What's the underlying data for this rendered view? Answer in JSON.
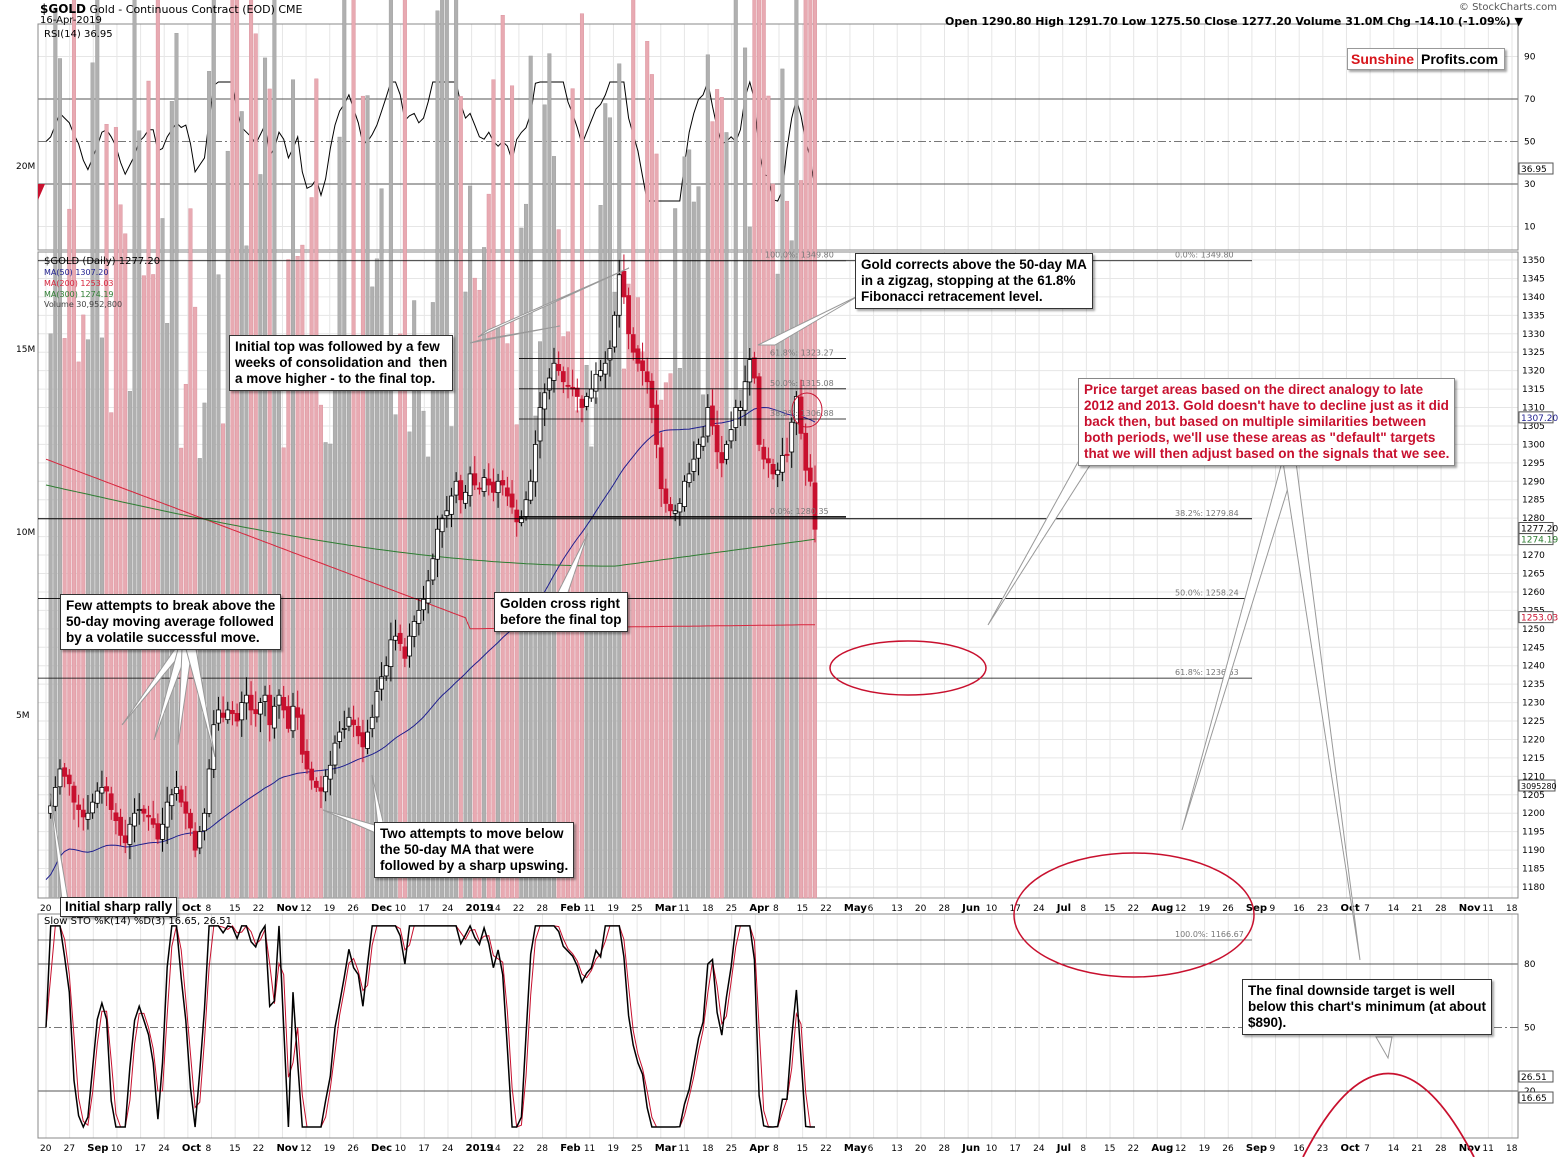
{
  "header": {
    "symbol": "$GOLD",
    "name": "Gold - Continuous Contract (EOD)",
    "exchange": "CME",
    "date": "16-Apr-2019",
    "watermark": "© StockCharts.com",
    "ohlc": "Open 1290.80  High 1291.70  Low 1275.50  Close 1277.20  Volume 31.0M  Chg -14.10 (-1.09%) ▼"
  },
  "logo": {
    "part1": "Sunshine",
    "part2": "Profits.com"
  },
  "rsi_label": "RSI(14) 36.95",
  "legend": {
    "main": "$GOLD (Daily) 1277.20",
    "ma50": "MA(50) 1307.20",
    "ma200": "MA(200) 1253.03",
    "ma300": "MA(300) 1274.19",
    "volume": "Volume 30,952,800"
  },
  "sto_label": "Slow STO %K(14) %D(3) 16.65, 26.51",
  "notes": {
    "initial_top": "Initial top was followed by a few\nweeks of consolidation and  then\na move higher - to the final top.",
    "gold_corrects": "Gold corrects above the 50-day MA\nin a zigzag, stopping at the 61.8%\nFibonacci retracement level.",
    "price_target": "Price target areas based on the direct analogy to late\n2012 and 2013. Gold doesn't have to decline just as it did\nback then, but based on multiple similarities between\nboth periods, we'll use these areas as \"default\" targets\nthat we will then adjust based on the signals that we see.",
    "few_attempts": "Few attempts to break above the\n50-day moving average followed\nby a volatile successful move.",
    "golden_cross": "Golden cross right\nbefore the final top",
    "two_attempts": "Two attempts to move below\nthe 50-day MA that were\nfollowed by a sharp upswing.",
    "initial_rally": "Initial sharp rally",
    "final_target": "The final downside target is well\nbelow this chart's minimum (at about\n$890)."
  },
  "colors": {
    "up": "#000000",
    "down": "#c8102e",
    "ma50": "#1f1f8f",
    "ma200": "#d7263d",
    "ma300": "#2e7d32",
    "vol_up": "#b0b0b0",
    "vol_down": "#e8aab2",
    "annot_red": "#c8102e",
    "grid": "#e6e6e6"
  },
  "chart_data": [
    {
      "type": "candlestick",
      "title": "$GOLD (Daily)",
      "ylim": [
        1175,
        1355
      ],
      "y_ticks": [
        1180,
        1185,
        1190,
        1195,
        1200,
        1205,
        1210,
        1215,
        1220,
        1225,
        1230,
        1235,
        1240,
        1245,
        1250,
        1255,
        1260,
        1265,
        1270,
        1275,
        1280,
        1285,
        1290,
        1295,
        1300,
        1305,
        1310,
        1315,
        1320,
        1325,
        1330,
        1335,
        1340,
        1345,
        1350
      ],
      "x_ticks": [
        "20",
        "27",
        "Sep",
        "10",
        "17",
        "24",
        "Oct",
        "8",
        "15",
        "22",
        "Nov",
        "12",
        "19",
        "26",
        "Dec",
        "10",
        "17",
        "24",
        "2019",
        "14",
        "22",
        "28",
        "Feb",
        "11",
        "19",
        "25",
        "Mar",
        "11",
        "18",
        "25",
        "Apr",
        "8",
        "15",
        "22",
        "May",
        "6",
        "13",
        "20",
        "28",
        "Jun",
        "10",
        "17",
        "24",
        "Jul",
        "8",
        "15",
        "22",
        "Aug",
        "12",
        "19",
        "26",
        "Sep",
        "9",
        "16",
        "23",
        "Oct",
        "7",
        "14",
        "21",
        "28",
        "Nov",
        "11",
        "18"
      ],
      "last_values": {
        "close": 1277.2,
        "ma50": 1307.2,
        "ma200": 1253.03,
        "ma300": 1274.19,
        "volume": 30952800
      },
      "fib_right": [
        {
          "label": "0.0%: 1349.80",
          "value": 1349.8
        },
        {
          "label": "38.2%: 1279.84",
          "value": 1279.84
        },
        {
          "label": "50.0%: 1258.24",
          "value": 1258.24
        },
        {
          "label": "61.8%: 1236.63",
          "value": 1236.63
        },
        {
          "label": "100.0%: 1166.67",
          "value": 1166.67
        }
      ],
      "fib_left": [
        {
          "label": "100.0%: 1349.80",
          "value": 1349.8
        },
        {
          "label": "61.8%: 1323.27",
          "value": 1323.27
        },
        {
          "label": "50.0%: 1315.08",
          "value": 1315.08
        },
        {
          "label": "38.2%: 1306.88",
          "value": 1306.88
        },
        {
          "label": "0.0%: 1280.35",
          "value": 1280.35
        }
      ],
      "volume_ticks": [
        "5M",
        "10M",
        "15M",
        "20M",
        "25M",
        "30M",
        "35M",
        "40M",
        "45M",
        "50M",
        "55M"
      ],
      "price_points": [
        1200,
        1202,
        1207,
        1212,
        1210,
        1208,
        1203,
        1201,
        1199,
        1200,
        1203,
        1206,
        1207,
        1206,
        1201,
        1198,
        1194,
        1192,
        1197,
        1200,
        1201,
        1200,
        1199,
        1197,
        1193,
        1197,
        1203,
        1205,
        1207,
        1203,
        1200,
        1196,
        1190,
        1195,
        1200,
        1212,
        1224,
        1228,
        1226,
        1228,
        1227,
        1225,
        1230,
        1232,
        1228,
        1227,
        1230,
        1232,
        1224,
        1229,
        1232,
        1228,
        1223,
        1229,
        1226,
        1216,
        1212,
        1209,
        1207,
        1206,
        1210,
        1213,
        1219,
        1222,
        1223,
        1226,
        1224,
        1221,
        1218,
        1222,
        1226,
        1233,
        1237,
        1240,
        1247,
        1248,
        1246,
        1242,
        1248,
        1252,
        1255,
        1258,
        1263,
        1269,
        1277,
        1280,
        1282,
        1286,
        1290,
        1285,
        1287,
        1292,
        1289,
        1288,
        1291,
        1289,
        1287,
        1290,
        1289,
        1286,
        1283,
        1279,
        1280,
        1285,
        1290,
        1300,
        1310,
        1314,
        1318,
        1322,
        1320,
        1317,
        1316,
        1315,
        1313,
        1310,
        1313,
        1315,
        1319,
        1320,
        1322,
        1326,
        1335,
        1346,
        1340,
        1330,
        1325,
        1322,
        1320,
        1317,
        1310,
        1300,
        1288,
        1284,
        1282,
        1282,
        1284,
        1290,
        1292,
        1296,
        1300,
        1302,
        1310,
        1305,
        1298,
        1295,
        1300,
        1304,
        1310,
        1310,
        1317,
        1323,
        1318,
        1300,
        1296,
        1295,
        1292,
        1293,
        1297,
        1297,
        1306,
        1313,
        1303,
        1293,
        1290,
        1277
      ],
      "rsi": {
        "ylim": [
          0,
          100
        ],
        "ticks": [
          10,
          30,
          50,
          70,
          90
        ],
        "last": 36.95
      },
      "stochastic": {
        "ylim": [
          0,
          100
        ],
        "ticks": [
          20,
          50,
          80
        ],
        "k_last": 16.65,
        "d_last": 26.51
      }
    }
  ]
}
